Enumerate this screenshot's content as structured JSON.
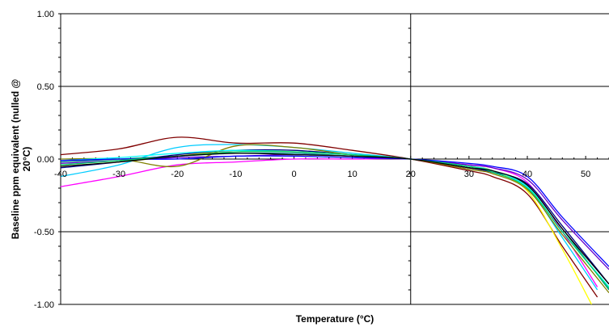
{
  "chart_data": {
    "type": "line",
    "title": "",
    "xlabel": "Temperature (°C)",
    "ylabel_lines": [
      "Baseline ppm equivalent (nulled @",
      "20°C)"
    ],
    "xlim": [
      -40,
      54
    ],
    "ylim": [
      -1.0,
      1.0
    ],
    "x_ticks": [
      -40,
      -30,
      -20,
      -10,
      0,
      10,
      20,
      30,
      40,
      50
    ],
    "x_tick_labels": [
      "-40",
      "-30",
      "-20",
      "-10",
      "0",
      "10",
      "20",
      "30",
      "40",
      "50"
    ],
    "y_ticks": [
      1.0,
      0.5,
      0.0,
      -0.5,
      -1.0
    ],
    "y_tick_labels": [
      "1.00",
      "0.50",
      "0.00",
      "-0.50",
      "-1.00"
    ],
    "grid": "horizontal major",
    "legend": "none",
    "series": [
      {
        "color": "#800000",
        "x": [
          -40,
          -30,
          -20,
          -10,
          0,
          10,
          20,
          30,
          34,
          40,
          46,
          52
        ],
        "y": [
          0.03,
          0.07,
          0.15,
          0.11,
          0.11,
          0.06,
          0.0,
          -0.08,
          -0.12,
          -0.24,
          -0.6,
          -0.95
        ]
      },
      {
        "color": "#ff00ff",
        "x": [
          -40,
          -30,
          -20,
          -10,
          0,
          10,
          20,
          30,
          34,
          40,
          46,
          52
        ],
        "y": [
          -0.19,
          -0.12,
          -0.04,
          -0.02,
          0.0,
          0.0,
          0.0,
          -0.04,
          -0.06,
          -0.16,
          -0.5,
          -0.88
        ]
      },
      {
        "color": "#00ccff",
        "x": [
          -40,
          -30,
          -20,
          -10,
          0,
          10,
          20,
          30,
          34,
          40,
          46,
          52
        ],
        "y": [
          -0.12,
          -0.04,
          0.08,
          0.1,
          0.08,
          0.04,
          0.0,
          -0.06,
          -0.09,
          -0.2,
          -0.54,
          -0.9
        ]
      },
      {
        "color": "#ffff00",
        "x": [
          -40,
          -30,
          -20,
          -10,
          0,
          10,
          20,
          30,
          34,
          40,
          46,
          51
        ],
        "y": [
          -0.05,
          -0.02,
          0.02,
          0.06,
          0.05,
          0.03,
          0.0,
          -0.05,
          -0.08,
          -0.22,
          -0.62,
          -1.0
        ]
      },
      {
        "color": "#6600cc",
        "x": [
          -40,
          -30,
          -20,
          -10,
          0,
          10,
          20,
          30,
          34,
          40,
          46,
          54
        ],
        "y": [
          -0.03,
          -0.01,
          0.01,
          0.02,
          0.03,
          0.02,
          0.0,
          -0.04,
          -0.06,
          -0.14,
          -0.42,
          -0.76
        ]
      },
      {
        "color": "#008080",
        "x": [
          -40,
          -30,
          -20,
          -10,
          0,
          10,
          20,
          30,
          34,
          40,
          46,
          54
        ],
        "y": [
          -0.02,
          0.0,
          0.02,
          0.04,
          0.04,
          0.02,
          0.0,
          -0.05,
          -0.08,
          -0.18,
          -0.48,
          -0.9
        ]
      },
      {
        "color": "#000080",
        "x": [
          -40,
          -30,
          -20,
          -10,
          0,
          10,
          20,
          30,
          34,
          40,
          46,
          54
        ],
        "y": [
          -0.06,
          -0.02,
          0.03,
          0.06,
          0.06,
          0.03,
          0.0,
          -0.06,
          -0.09,
          -0.17,
          -0.46,
          -0.86
        ]
      },
      {
        "color": "#808000",
        "x": [
          -40,
          -30,
          -20,
          -10,
          0,
          10,
          20,
          30,
          34,
          40,
          46,
          54
        ],
        "y": [
          0.0,
          0.0,
          -0.05,
          0.09,
          0.08,
          0.03,
          0.0,
          -0.07,
          -0.1,
          -0.21,
          -0.52,
          -0.92
        ]
      },
      {
        "color": "#00ffff",
        "x": [
          -40,
          -30,
          -20,
          -10,
          0,
          10,
          20,
          30,
          34,
          40,
          46,
          54
        ],
        "y": [
          -0.01,
          0.01,
          0.04,
          0.06,
          0.05,
          0.03,
          0.0,
          -0.05,
          -0.08,
          -0.19,
          -0.5,
          -0.88
        ]
      },
      {
        "color": "#0000ff",
        "x": [
          -40,
          -30,
          -20,
          -10,
          0,
          10,
          20,
          30,
          34,
          40,
          46,
          54
        ],
        "y": [
          -0.01,
          0.0,
          0.0,
          0.02,
          0.02,
          0.01,
          0.0,
          -0.03,
          -0.05,
          -0.12,
          -0.4,
          -0.74
        ]
      },
      {
        "color": "#00cc66",
        "x": [
          -40,
          -30,
          -20,
          -10,
          0,
          10,
          20,
          30,
          34,
          40,
          46,
          54
        ],
        "y": [
          -0.04,
          -0.01,
          0.02,
          0.05,
          0.05,
          0.03,
          0.0,
          -0.05,
          -0.09,
          -0.2,
          -0.5,
          -0.89
        ]
      },
      {
        "color": "#000000",
        "x": [
          -40,
          -30,
          -20,
          -10,
          0,
          10,
          20,
          30,
          34,
          40,
          46,
          54
        ],
        "y": [
          -0.05,
          -0.02,
          0.02,
          0.04,
          0.03,
          0.02,
          0.0,
          -0.06,
          -0.08,
          -0.18,
          -0.48,
          -0.86
        ]
      }
    ]
  }
}
